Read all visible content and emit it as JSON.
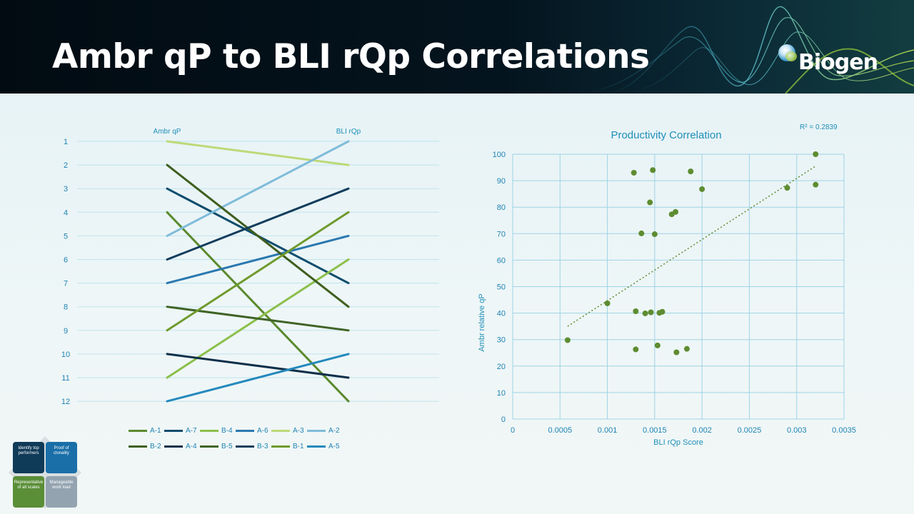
{
  "title": "Ambr qP to BLI rQp Correlations",
  "logo": {
    "text": "Biogen"
  },
  "chart_data": [
    {
      "type": "line",
      "subtype": "slope",
      "left_label": "Ambr qP",
      "right_label": "BLI rQp",
      "ranks": [
        "1",
        "2",
        "3",
        "4",
        "5",
        "6",
        "7",
        "8",
        "9",
        "10",
        "11",
        "12"
      ],
      "series": [
        {
          "name": "A-1",
          "from": 4,
          "to": 12,
          "color": "#5b8a2e"
        },
        {
          "name": "A-7",
          "from": 3,
          "to": 7,
          "color": "#0f4d6e"
        },
        {
          "name": "B-4",
          "from": 11,
          "to": 6,
          "color": "#8cbf4b"
        },
        {
          "name": "A-6",
          "from": 7,
          "to": 5,
          "color": "#2a78b0"
        },
        {
          "name": "A-3",
          "from": 1,
          "to": 2,
          "color": "#bcd978"
        },
        {
          "name": "A-2",
          "from": 5,
          "to": 1,
          "color": "#7fbcd9"
        },
        {
          "name": "B-2",
          "from": 2,
          "to": 8,
          "color": "#3f5e1e"
        },
        {
          "name": "A-4",
          "from": 10,
          "to": 11,
          "color": "#0d2f4a"
        },
        {
          "name": "B-5",
          "from": 8,
          "to": 9,
          "color": "#3f6326"
        },
        {
          "name": "B-3",
          "from": 6,
          "to": 3,
          "color": "#123d5c"
        },
        {
          "name": "B-1",
          "from": 9,
          "to": 4,
          "color": "#6f9a2c"
        },
        {
          "name": "A-5",
          "from": 12,
          "to": 10,
          "color": "#2489bd"
        }
      ]
    },
    {
      "type": "scatter",
      "title": "Productivity Correlation",
      "xlabel": "BLI rQp Score",
      "ylabel": "Ambr relative qP",
      "xlim": [
        0,
        0.0035
      ],
      "ylim": [
        0,
        100
      ],
      "xticks": [
        "0",
        "0.0005",
        "0.001",
        "0.0015",
        "0.002",
        "0.0025",
        "0.003",
        "0.0035"
      ],
      "yticks": [
        "0",
        "10",
        "20",
        "30",
        "40",
        "50",
        "60",
        "70",
        "80",
        "90",
        "100"
      ],
      "r2_label": "R² = 0.2839",
      "trendline": {
        "x1": 0.00058,
        "y1": 35,
        "x2": 0.0032,
        "y2": 95.5
      },
      "point_color": "#5e8c31",
      "points": [
        [
          0.00058,
          29.8
        ],
        [
          0.001,
          43.7
        ],
        [
          0.00128,
          93
        ],
        [
          0.0013,
          40.7
        ],
        [
          0.0013,
          26.3
        ],
        [
          0.00136,
          70.1
        ],
        [
          0.0014,
          39.9
        ],
        [
          0.00145,
          81.8
        ],
        [
          0.00146,
          40.3
        ],
        [
          0.00148,
          94
        ],
        [
          0.0015,
          69.8
        ],
        [
          0.00153,
          27.8
        ],
        [
          0.00155,
          40.1
        ],
        [
          0.00158,
          40.5
        ],
        [
          0.00168,
          77.3
        ],
        [
          0.00172,
          78.2
        ],
        [
          0.00173,
          25.2
        ],
        [
          0.00184,
          26.5
        ],
        [
          0.00188,
          93.5
        ],
        [
          0.002,
          86.8
        ],
        [
          0.0029,
          87.3
        ],
        [
          0.0032,
          100
        ],
        [
          0.0032,
          88.5
        ]
      ]
    }
  ],
  "smartart": {
    "q1": "Identify top performers",
    "q2": "Proof of clonality",
    "q3": "Representative of all scales",
    "q4": "Manageable work load"
  }
}
